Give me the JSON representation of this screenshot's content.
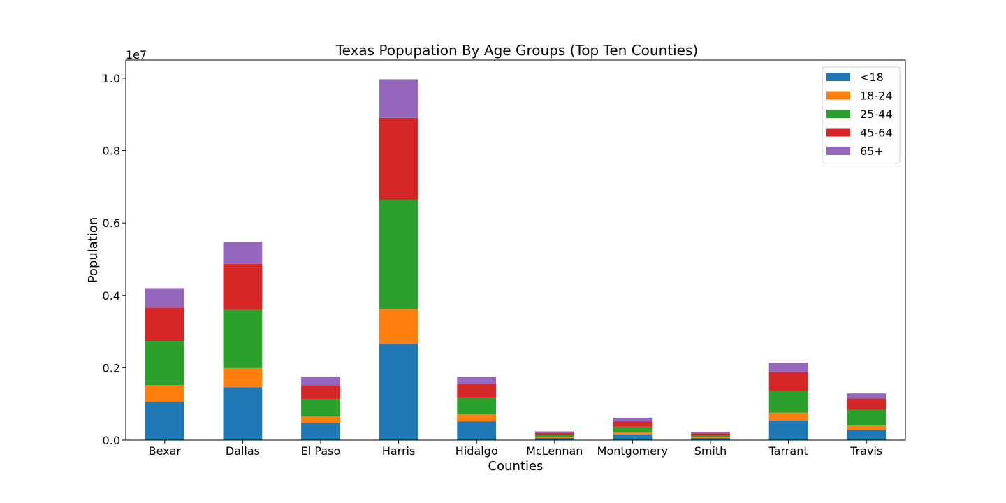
{
  "chart_data": {
    "type": "bar",
    "stacked": true,
    "title": "Texas Popupation By Age Groups (Top Ten Counties)",
    "xlabel": "Counties",
    "ylabel": "Population",
    "y_offset_label": "1e7",
    "ylim": [
      0,
      10500000
    ],
    "y_ticks": [
      0,
      2000000,
      4000000,
      6000000,
      8000000,
      10000000
    ],
    "y_tick_labels": [
      "0.0",
      "0.2",
      "0.4",
      "0.6",
      "0.8",
      "1.0"
    ],
    "categories": [
      "Bexar",
      "Dallas",
      "El Paso",
      "Harris",
      "Hidalgo",
      "McLennan",
      "Montgomery",
      "Smith",
      "Tarrant",
      "Travis"
    ],
    "series": [
      {
        "name": "<18",
        "color": "#1f77b4",
        "values": [
          1060000,
          1460000,
          480000,
          2660000,
          520000,
          60000,
          160000,
          60000,
          540000,
          290000
        ]
      },
      {
        "name": "18-24",
        "color": "#ff7f0e",
        "values": [
          460000,
          530000,
          170000,
          960000,
          200000,
          30000,
          60000,
          30000,
          220000,
          110000
        ]
      },
      {
        "name": "25-44",
        "color": "#2ca02c",
        "values": [
          1220000,
          1620000,
          490000,
          3020000,
          460000,
          60000,
          150000,
          50000,
          600000,
          440000
        ]
      },
      {
        "name": "45-64",
        "color": "#d62728",
        "values": [
          920000,
          1260000,
          380000,
          2260000,
          370000,
          50000,
          150000,
          50000,
          520000,
          310000
        ]
      },
      {
        "name": "65+",
        "color": "#9467bd",
        "values": [
          540000,
          600000,
          230000,
          1070000,
          200000,
          40000,
          100000,
          40000,
          260000,
          140000
        ]
      }
    ],
    "legend_position": "upper-right",
    "grid": false
  }
}
